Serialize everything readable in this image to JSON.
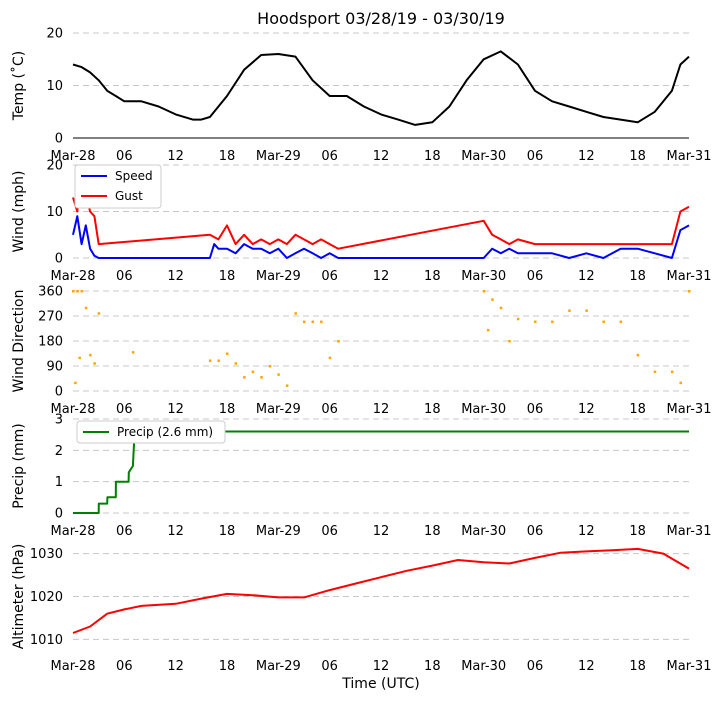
{
  "title": "Hoodsport 03/28/19 - 03/30/19",
  "xlabel": "Time (UTC)",
  "colors": {
    "temp": "#000000",
    "speed": "#0000ff",
    "gust": "#ff0000",
    "dir": "#ffa500",
    "precip": "#008000",
    "alt": "#ff0000",
    "grid": "#c8c8c8"
  },
  "x_axis": {
    "type": "time",
    "range": [
      "2019-03-28 00:00",
      "2019-03-31 00:00"
    ],
    "tick_labels": [
      "Mar-28",
      "06",
      "12",
      "18",
      "Mar-29",
      "06",
      "12",
      "18",
      "Mar-30",
      "06",
      "12",
      "18",
      "Mar-31"
    ],
    "ticks_hours": [
      0,
      6,
      12,
      18,
      24,
      30,
      36,
      42,
      48,
      54,
      60,
      66,
      72
    ]
  },
  "chart_data": [
    {
      "type": "line",
      "ylabel": "Temp (˚C)",
      "ylim": [
        0,
        20
      ],
      "yticks": [
        "0",
        "10",
        "20"
      ],
      "grid": true,
      "series": [
        {
          "color": "#000000",
          "x": [
            "2019-03-28 00:00",
            "2019-03-28 01:00",
            "2019-03-28 02:00",
            "2019-03-28 03:00",
            "2019-03-28 04:00",
            "2019-03-28 05:00",
            "2019-03-28 06:00",
            "2019-03-28 08:00",
            "2019-03-28 10:00",
            "2019-03-28 12:00",
            "2019-03-28 14:00",
            "2019-03-28 15:00",
            "2019-03-28 16:00",
            "2019-03-28 18:00",
            "2019-03-28 20:00",
            "2019-03-28 22:00",
            "2019-03-29 00:00",
            "2019-03-29 02:00",
            "2019-03-29 04:00",
            "2019-03-29 06:00",
            "2019-03-29 08:00",
            "2019-03-29 10:00",
            "2019-03-29 12:00",
            "2019-03-29 14:00",
            "2019-03-29 16:00",
            "2019-03-29 18:00",
            "2019-03-29 20:00",
            "2019-03-29 22:00",
            "2019-03-30 00:00",
            "2019-03-30 02:00",
            "2019-03-30 04:00",
            "2019-03-30 06:00",
            "2019-03-30 08:00",
            "2019-03-30 10:00",
            "2019-03-30 12:00",
            "2019-03-30 14:00",
            "2019-03-30 16:00",
            "2019-03-30 18:00",
            "2019-03-30 20:00",
            "2019-03-30 22:00",
            "2019-03-30 23:00",
            "2019-03-31 00:00"
          ],
          "y": [
            14,
            13.5,
            12.5,
            11,
            9,
            8,
            7,
            7,
            6,
            4.5,
            3.5,
            3.5,
            4,
            8,
            13,
            15.8,
            16,
            15.5,
            11,
            8,
            8,
            6,
            4.5,
            3.5,
            2.5,
            3,
            6,
            11,
            15,
            16.5,
            14,
            9,
            7,
            6,
            5,
            4,
            3.5,
            3,
            5,
            9,
            14,
            15.5
          ]
        }
      ]
    },
    {
      "type": "line",
      "ylabel": "Wind (mph)",
      "ylim": [
        0,
        20
      ],
      "yticks": [
        "0",
        "10",
        "20"
      ],
      "grid": true,
      "legend": {
        "placement": "top-left",
        "entries": [
          "Speed",
          "Gust"
        ]
      },
      "series": [
        {
          "name": "Speed",
          "color": "#0000ff",
          "x": [
            "2019-03-28 00:00",
            "2019-03-28 00:30",
            "2019-03-28 01:00",
            "2019-03-28 01:30",
            "2019-03-28 02:00",
            "2019-03-28 02:30",
            "2019-03-28 03:00",
            "2019-03-28 04:00",
            "2019-03-28 10:00",
            "2019-03-28 16:00",
            "2019-03-28 16:30",
            "2019-03-28 17:00",
            "2019-03-28 18:00",
            "2019-03-28 19:00",
            "2019-03-28 20:00",
            "2019-03-28 21:00",
            "2019-03-28 22:00",
            "2019-03-28 23:00",
            "2019-03-29 00:00",
            "2019-03-29 01:00",
            "2019-03-29 02:00",
            "2019-03-29 03:00",
            "2019-03-29 04:00",
            "2019-03-29 05:00",
            "2019-03-29 06:00",
            "2019-03-29 07:00",
            "2019-03-29 08:00",
            "2019-03-29 14:00",
            "2019-03-29 20:00",
            "2019-03-30 00:00",
            "2019-03-30 01:00",
            "2019-03-30 02:00",
            "2019-03-30 03:00",
            "2019-03-30 04:00",
            "2019-03-30 06:00",
            "2019-03-30 08:00",
            "2019-03-30 10:00",
            "2019-03-30 12:00",
            "2019-03-30 14:00",
            "2019-03-30 16:00",
            "2019-03-30 18:00",
            "2019-03-30 20:00",
            "2019-03-30 22:00",
            "2019-03-30 23:00",
            "2019-03-31 00:00"
          ],
          "y": [
            5,
            9,
            3,
            7,
            2,
            0.5,
            0,
            0,
            0,
            0,
            3,
            2,
            2,
            1,
            3,
            2,
            2,
            1,
            2,
            0,
            1,
            2,
            1,
            0,
            1,
            0,
            0,
            0,
            0,
            0,
            2,
            1,
            2,
            1,
            1,
            1,
            0,
            1,
            0,
            2,
            2,
            1,
            0,
            6,
            7
          ]
        },
        {
          "name": "Gust",
          "color": "#ff0000",
          "x": [
            "2019-03-28 00:00",
            "2019-03-28 00:30",
            "2019-03-28 01:00",
            "2019-03-28 01:30",
            "2019-03-28 02:00",
            "2019-03-28 02:30",
            "2019-03-28 03:00",
            "2019-03-28 16:00",
            "2019-03-28 17:00",
            "2019-03-28 18:00",
            "2019-03-28 19:00",
            "2019-03-28 20:00",
            "2019-03-28 21:00",
            "2019-03-28 22:00",
            "2019-03-28 23:00",
            "2019-03-29 00:00",
            "2019-03-29 01:00",
            "2019-03-29 02:00",
            "2019-03-29 03:00",
            "2019-03-29 04:00",
            "2019-03-29 05:00",
            "2019-03-29 06:00",
            "2019-03-29 07:00",
            "2019-03-30 00:00",
            "2019-03-30 01:00",
            "2019-03-30 02:00",
            "2019-03-30 03:00",
            "2019-03-30 04:00",
            "2019-03-30 06:00",
            "2019-03-30 08:00",
            "2019-03-30 10:00",
            "2019-03-30 12:00",
            "2019-03-30 14:00",
            "2019-03-30 16:00",
            "2019-03-30 18:00",
            "2019-03-30 20:00",
            "2019-03-30 22:00",
            "2019-03-30 23:00",
            "2019-03-31 00:00"
          ],
          "y": [
            13,
            10,
            19,
            14,
            10,
            9,
            3,
            5,
            4,
            7,
            3,
            5,
            3,
            4,
            3,
            4,
            3,
            5,
            4,
            3,
            4,
            3,
            2,
            8,
            5,
            4,
            3,
            4,
            3,
            3,
            3,
            3,
            3,
            3,
            3,
            3,
            3,
            10,
            11
          ]
        }
      ]
    },
    {
      "type": "scatter",
      "ylabel": "Wind Direction",
      "ylim": [
        0,
        360
      ],
      "yticks": [
        "0",
        "90",
        "180",
        "270",
        "360"
      ],
      "grid": true,
      "series": [
        {
          "color": "#ffa500",
          "x": [
            "2019-03-28 00:00",
            "2019-03-28 00:15",
            "2019-03-28 00:30",
            "2019-03-28 00:45",
            "2019-03-28 01:00",
            "2019-03-28 01:30",
            "2019-03-28 02:00",
            "2019-03-28 02:30",
            "2019-03-28 03:00",
            "2019-03-28 07:00",
            "2019-03-28 16:00",
            "2019-03-28 17:00",
            "2019-03-28 18:00",
            "2019-03-28 19:00",
            "2019-03-28 20:00",
            "2019-03-28 21:00",
            "2019-03-28 22:00",
            "2019-03-28 23:00",
            "2019-03-29 00:00",
            "2019-03-29 01:00",
            "2019-03-29 02:00",
            "2019-03-29 03:00",
            "2019-03-29 04:00",
            "2019-03-29 05:00",
            "2019-03-29 06:00",
            "2019-03-29 07:00",
            "2019-03-30 00:00",
            "2019-03-30 00:30",
            "2019-03-30 01:00",
            "2019-03-30 02:00",
            "2019-03-30 03:00",
            "2019-03-30 04:00",
            "2019-03-30 06:00",
            "2019-03-30 08:00",
            "2019-03-30 10:00",
            "2019-03-30 12:00",
            "2019-03-30 14:00",
            "2019-03-30 16:00",
            "2019-03-30 18:00",
            "2019-03-30 20:00",
            "2019-03-30 22:00",
            "2019-03-30 23:00",
            "2019-03-31 00:00"
          ],
          "y": [
            360,
            30,
            360,
            120,
            360,
            300,
            130,
            100,
            280,
            140,
            110,
            110,
            135,
            100,
            50,
            70,
            50,
            90,
            60,
            20,
            280,
            250,
            250,
            250,
            120,
            180,
            360,
            220,
            330,
            300,
            180,
            260,
            250,
            250,
            290,
            290,
            250,
            250,
            130,
            70,
            70,
            30,
            360
          ]
        }
      ]
    },
    {
      "type": "line",
      "ylabel": "Precip (mm)",
      "ylim": [
        0,
        3
      ],
      "yticks": [
        "0",
        "1",
        "2",
        "3"
      ],
      "grid": true,
      "legend": {
        "placement": "top-left",
        "entries": [
          "Precip (2.6 mm)"
        ]
      },
      "series": [
        {
          "name": "Precip (2.6 mm)",
          "color": "#008000",
          "x": [
            "2019-03-28 00:00",
            "2019-03-28 03:00",
            "2019-03-28 03:01",
            "2019-03-28 04:00",
            "2019-03-28 04:01",
            "2019-03-28 05:00",
            "2019-03-28 05:01",
            "2019-03-28 06:30",
            "2019-03-28 06:31",
            "2019-03-28 07:00",
            "2019-03-28 07:10",
            "2019-03-28 07:20",
            "2019-03-31 00:00"
          ],
          "y": [
            0,
            0,
            0.3,
            0.3,
            0.5,
            0.5,
            1.0,
            1.0,
            1.3,
            1.5,
            2.4,
            2.6,
            2.6
          ]
        }
      ]
    },
    {
      "type": "line",
      "ylabel": "Altimeter (hPa)",
      "ylim": [
        1008,
        1032
      ],
      "yticks": [
        "1010",
        "1020",
        "1030"
      ],
      "grid": true,
      "series": [
        {
          "color": "#ff0000",
          "x": [
            "2019-03-28 00:00",
            "2019-03-28 02:00",
            "2019-03-28 04:00",
            "2019-03-28 06:00",
            "2019-03-28 08:00",
            "2019-03-28 12:00",
            "2019-03-28 15:00",
            "2019-03-28 18:00",
            "2019-03-28 21:00",
            "2019-03-29 00:00",
            "2019-03-29 03:00",
            "2019-03-29 06:00",
            "2019-03-29 09:00",
            "2019-03-29 12:00",
            "2019-03-29 15:00",
            "2019-03-29 18:00",
            "2019-03-29 21:00",
            "2019-03-30 00:00",
            "2019-03-30 03:00",
            "2019-03-30 06:00",
            "2019-03-30 09:00",
            "2019-03-30 12:00",
            "2019-03-30 15:00",
            "2019-03-30 18:00",
            "2019-03-30 21:00",
            "2019-03-31 00:00"
          ],
          "y": [
            1011.5,
            1013,
            1016,
            1017,
            1017.8,
            1018.3,
            1019.5,
            1020.6,
            1020.3,
            1019.8,
            1019.8,
            1021.5,
            1023,
            1024.5,
            1026,
            1027.2,
            1028.5,
            1028,
            1027.7,
            1029,
            1030.2,
            1030.5,
            1030.8,
            1031.1,
            1030,
            1026.5
          ]
        }
      ]
    }
  ]
}
